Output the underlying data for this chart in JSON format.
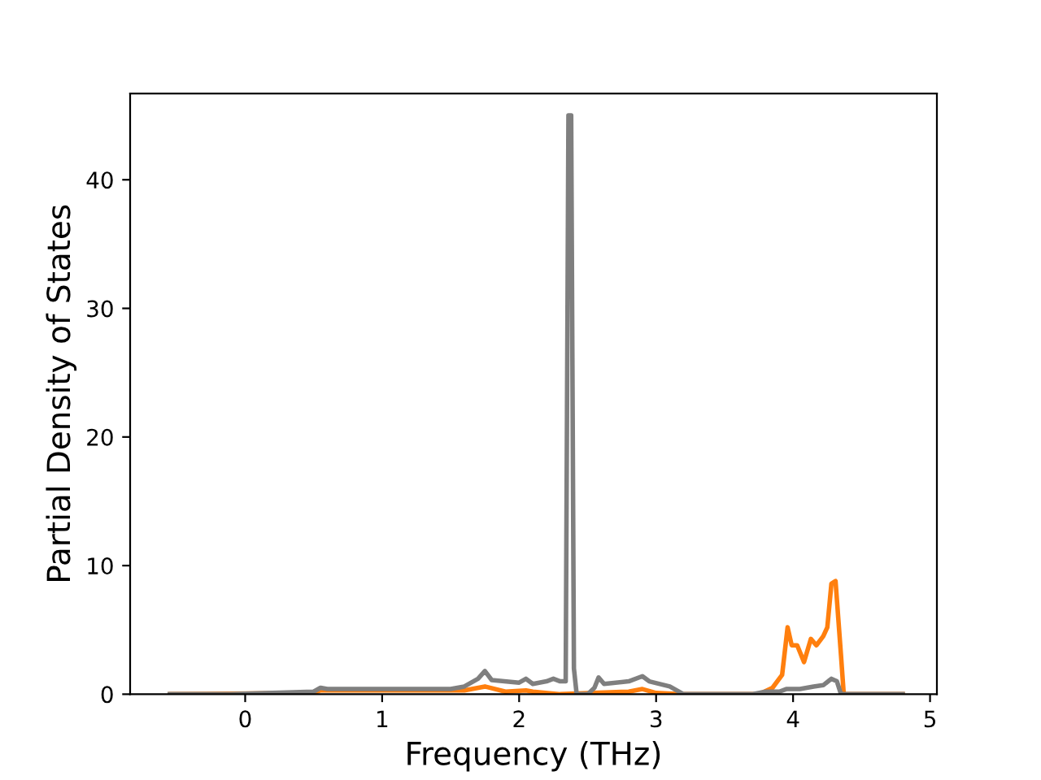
{
  "chart_data": {
    "type": "line",
    "xlabel": "Frequency (THz)",
    "ylabel": "Partial Density of States",
    "xlim": [
      -0.84,
      5.05
    ],
    "ylim": [
      0,
      46.7
    ],
    "xticks": [
      0,
      1,
      2,
      3,
      4,
      5
    ],
    "yticks": [
      0,
      10,
      20,
      30,
      40
    ],
    "grid": false,
    "legend": false,
    "series": [
      {
        "color": "#ff7f0e",
        "x": [
          -0.55,
          0.5,
          0.55,
          1.6,
          1.75,
          1.9,
          2.05,
          2.1,
          2.3,
          2.8,
          2.9,
          3.0,
          3.2,
          3.75,
          3.85,
          3.92,
          3.96,
          3.99,
          4.03,
          4.08,
          4.13,
          4.17,
          4.22,
          4.25,
          4.28,
          4.31,
          4.35,
          4.37,
          4.8
        ],
        "values": [
          0,
          0.1,
          0.3,
          0.3,
          0.6,
          0.2,
          0.3,
          0.2,
          0,
          0.2,
          0.4,
          0.1,
          0,
          0,
          0.5,
          1.5,
          5.2,
          3.8,
          3.8,
          2.5,
          4.3,
          3.8,
          4.5,
          5.2,
          8.6,
          8.8,
          3,
          0,
          0
        ]
      },
      {
        "color": "#7f7f7f",
        "x": [
          -0.55,
          -0.1,
          0.2,
          0.5,
          0.55,
          0.6,
          1.0,
          1.5,
          1.6,
          1.7,
          1.75,
          1.8,
          2.0,
          2.05,
          2.1,
          2.2,
          2.25,
          2.3,
          2.34,
          2.36,
          2.38,
          2.4,
          2.42,
          2.5,
          2.55,
          2.58,
          2.62,
          2.8,
          2.9,
          2.95,
          3.1,
          3.2,
          3.7,
          3.8,
          3.9,
          3.95,
          4.05,
          4.15,
          4.22,
          4.28,
          4.32,
          4.35,
          4.8
        ],
        "values": [
          0,
          0,
          0.1,
          0.2,
          0.5,
          0.4,
          0.4,
          0.4,
          0.6,
          1.2,
          1.8,
          1.1,
          0.9,
          1.2,
          0.8,
          1.0,
          1.2,
          1.0,
          1.0,
          45,
          45,
          2,
          0,
          0,
          0.5,
          1.3,
          0.8,
          1.0,
          1.4,
          1.0,
          0.6,
          0,
          0,
          0.2,
          0.2,
          0.4,
          0.4,
          0.6,
          0.7,
          1.2,
          1.0,
          0,
          0
        ]
      }
    ]
  }
}
